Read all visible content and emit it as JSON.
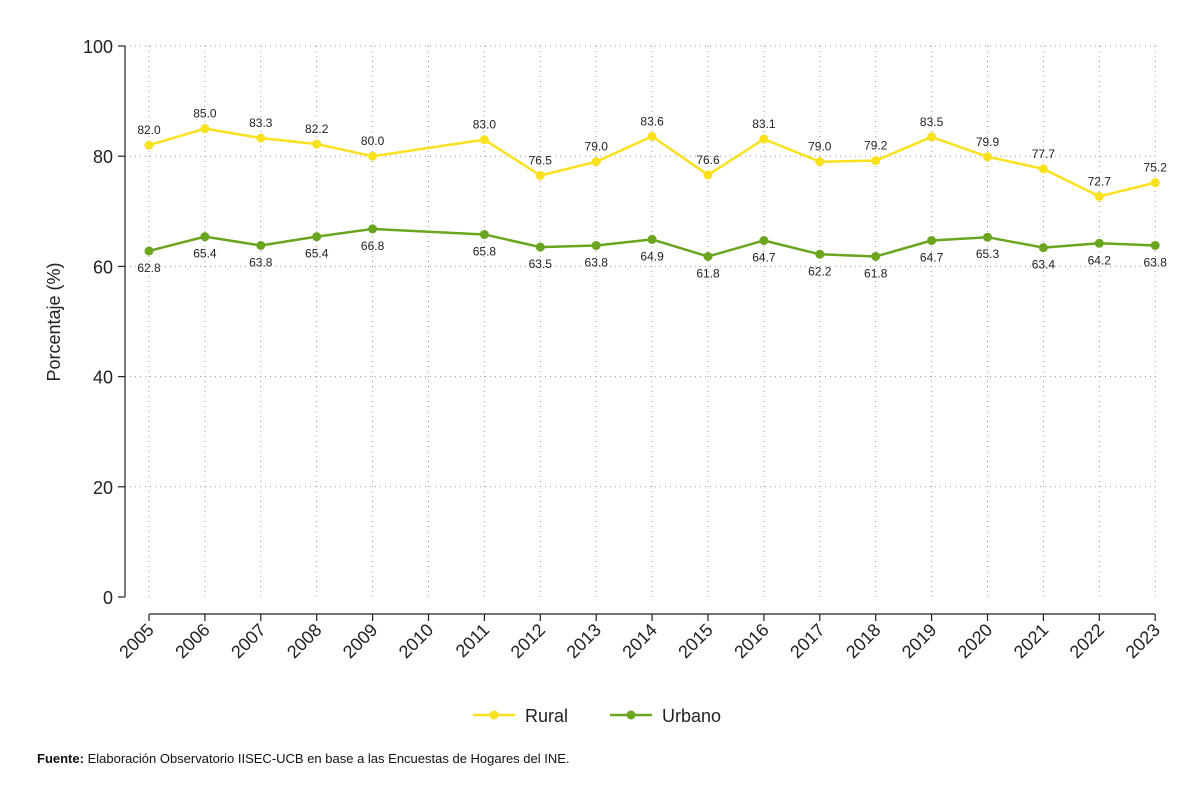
{
  "chart_data": {
    "type": "line",
    "title": "",
    "xlabel": "",
    "ylabel": "Porcentaje (%)",
    "ylim": [
      0,
      100
    ],
    "yticks": [
      0,
      20,
      40,
      60,
      80,
      100
    ],
    "grid": true,
    "legend_position": "bottom",
    "categories": [
      "2005",
      "2006",
      "2007",
      "2008",
      "2009",
      "2010",
      "2011",
      "2012",
      "2013",
      "2014",
      "2015",
      "2016",
      "2017",
      "2018",
      "2019",
      "2020",
      "2021",
      "2022",
      "2023"
    ],
    "series": [
      {
        "name": "Rural",
        "color": "#f9e11e",
        "label_position": "above",
        "x": [
          "2005",
          "2006",
          "2007",
          "2008",
          "2009",
          "2011",
          "2012",
          "2013",
          "2014",
          "2015",
          "2016",
          "2017",
          "2018",
          "2019",
          "2020",
          "2021",
          "2022",
          "2023"
        ],
        "values": [
          82.0,
          85.0,
          83.3,
          82.2,
          80.0,
          83.0,
          76.5,
          79.0,
          83.6,
          76.6,
          83.1,
          79.0,
          79.2,
          83.5,
          79.9,
          77.7,
          72.7,
          75.2
        ],
        "labels": [
          "82.0",
          "85.0",
          "83.3",
          "82.2",
          "80.0",
          "83.0",
          "76.5",
          "79.0",
          "83.6",
          "76.6",
          "83.1",
          "79.0",
          "79.2",
          "83.5",
          "79.9",
          "77.7",
          "72.7",
          "75.2"
        ]
      },
      {
        "name": "Urbano",
        "color": "#6aa51f",
        "label_position": "below",
        "x": [
          "2005",
          "2006",
          "2007",
          "2008",
          "2009",
          "2011",
          "2012",
          "2013",
          "2014",
          "2015",
          "2016",
          "2017",
          "2018",
          "2019",
          "2020",
          "2021",
          "2022",
          "2023"
        ],
        "values": [
          62.8,
          65.4,
          63.8,
          65.4,
          66.8,
          65.8,
          63.5,
          63.8,
          64.9,
          61.8,
          64.7,
          62.2,
          61.8,
          64.7,
          65.3,
          63.4,
          64.2,
          63.8
        ],
        "labels": [
          "62.8",
          "65.4",
          "63.8",
          "65.4",
          "66.8",
          "65.8",
          "63.5",
          "63.8",
          "64.9",
          "61.8",
          "64.7",
          "62.2",
          "61.8",
          "64.7",
          "65.3",
          "63.4",
          "64.2",
          "63.8"
        ]
      }
    ]
  },
  "source": {
    "label": "Fuente:",
    "text": " Elaboración Observatorio IISEC-UCB en base a las Encuestas de Hogares del INE."
  }
}
